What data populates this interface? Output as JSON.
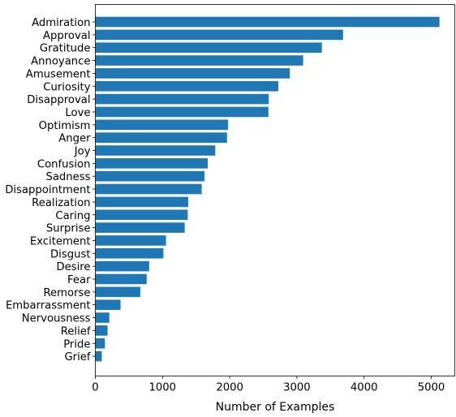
{
  "chart_data": {
    "type": "bar",
    "orientation": "horizontal",
    "title": "",
    "xlabel": "Number of Examples",
    "ylabel": "",
    "xlim": [
      0,
      5350
    ],
    "x_ticks": [
      0,
      1000,
      2000,
      3000,
      4000,
      5000
    ],
    "grid": false,
    "legend": "none",
    "bar_color": "#1f77b4",
    "categories": [
      "Admiration",
      "Approval",
      "Gratitude",
      "Annoyance",
      "Amusement",
      "Curiosity",
      "Disapproval",
      "Love",
      "Optimism",
      "Anger",
      "Joy",
      "Confusion",
      "Sadness",
      "Disappointment",
      "Realization",
      "Caring",
      "Surprise",
      "Excitement",
      "Disgust",
      "Desire",
      "Fear",
      "Remorse",
      "Embarrassment",
      "Nervousness",
      "Relief",
      "Pride",
      "Grief"
    ],
    "values": [
      5122,
      3687,
      3372,
      3093,
      2895,
      2723,
      2581,
      2576,
      1976,
      1960,
      1785,
      1673,
      1625,
      1583,
      1382,
      1375,
      1330,
      1052,
      1013,
      801,
      764,
      669,
      375,
      208,
      182,
      142,
      96
    ]
  }
}
